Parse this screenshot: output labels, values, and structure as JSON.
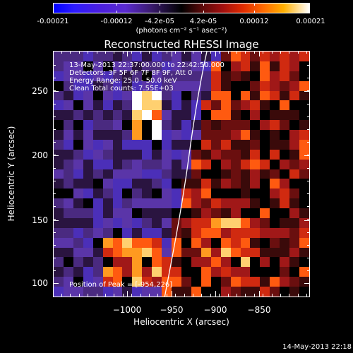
{
  "colorbar": {
    "tick_labels": [
      "-0.00021",
      "-0.00012",
      "-4.2e-05",
      "4.2e-05",
      "0.00012",
      "0.00021"
    ],
    "tick_values": [
      -0.00021,
      -0.00012,
      -4.2e-05,
      4.2e-05,
      0.00012,
      0.00021
    ],
    "range": [
      -0.00021,
      0.00021
    ],
    "units": "(photons cm⁻² s⁻¹ asec⁻²)"
  },
  "chart_data": {
    "type": "heatmap",
    "title": "Reconstructed RHESSI Image",
    "xlabel": "Heliocentric X (arcsec)",
    "ylabel": "Heliocentric Y (arcsec)",
    "xlim": [
      -1030,
      -835
    ],
    "ylim": [
      90,
      277
    ],
    "x_tick_labels": [
      "−1000",
      "−950",
      "−900",
      "−850"
    ],
    "x_tick_values": [
      -1000,
      -950,
      -900,
      -850
    ],
    "y_tick_labels": [
      "100",
      "150",
      "200",
      "250"
    ],
    "y_tick_values": [
      100,
      150,
      200,
      250
    ],
    "annotations": [
      "13-May-2013 22:37:00.000 to 22:42:50.000",
      "Detectors: 3F 5F 6F 7F 8F 9F, Att 0",
      "Energy Range: 25.0 - 50.0 keV",
      "Clean     Total counts: 7.55E+03"
    ],
    "peak_label": "Position of Peak = [-954,226]",
    "peak_position": [
      -954,
      226
    ],
    "grid": false
  },
  "footer": {
    "timestamp": "14-May-2013 22:18"
  },
  "colors": {
    "background": "#000000",
    "limb_line": "#ffffff"
  }
}
